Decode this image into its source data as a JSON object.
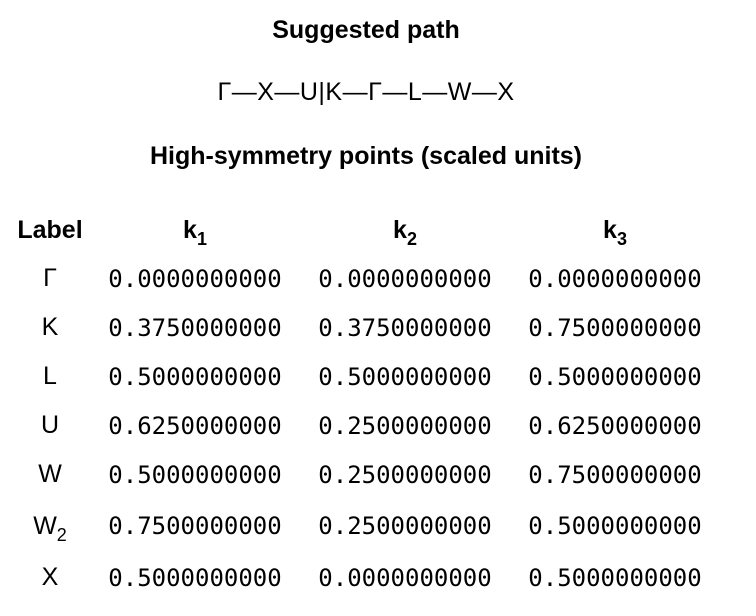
{
  "title": "Suggested path",
  "path": "Γ—X—U|K—Γ—L—W—X",
  "subtitle": "High-symmetry points (scaled units)",
  "columns": [
    {
      "base": "Label",
      "sub": ""
    },
    {
      "base": "k",
      "sub": "1"
    },
    {
      "base": "k",
      "sub": "2"
    },
    {
      "base": "k",
      "sub": "3"
    }
  ],
  "rows": [
    {
      "label": "Γ",
      "sub": "",
      "k1": "0.0000000000",
      "k2": "0.0000000000",
      "k3": "0.0000000000"
    },
    {
      "label": "K",
      "sub": "",
      "k1": "0.3750000000",
      "k2": "0.3750000000",
      "k3": "0.7500000000"
    },
    {
      "label": "L",
      "sub": "",
      "k1": "0.5000000000",
      "k2": "0.5000000000",
      "k3": "0.5000000000"
    },
    {
      "label": "U",
      "sub": "",
      "k1": "0.6250000000",
      "k2": "0.2500000000",
      "k3": "0.6250000000"
    },
    {
      "label": "W",
      "sub": "",
      "k1": "0.5000000000",
      "k2": "0.2500000000",
      "k3": "0.7500000000"
    },
    {
      "label": "W",
      "sub": "2",
      "k1": "0.7500000000",
      "k2": "0.2500000000",
      "k3": "0.5000000000"
    },
    {
      "label": "X",
      "sub": "",
      "k1": "0.5000000000",
      "k2": "0.0000000000",
      "k3": "0.5000000000"
    }
  ]
}
